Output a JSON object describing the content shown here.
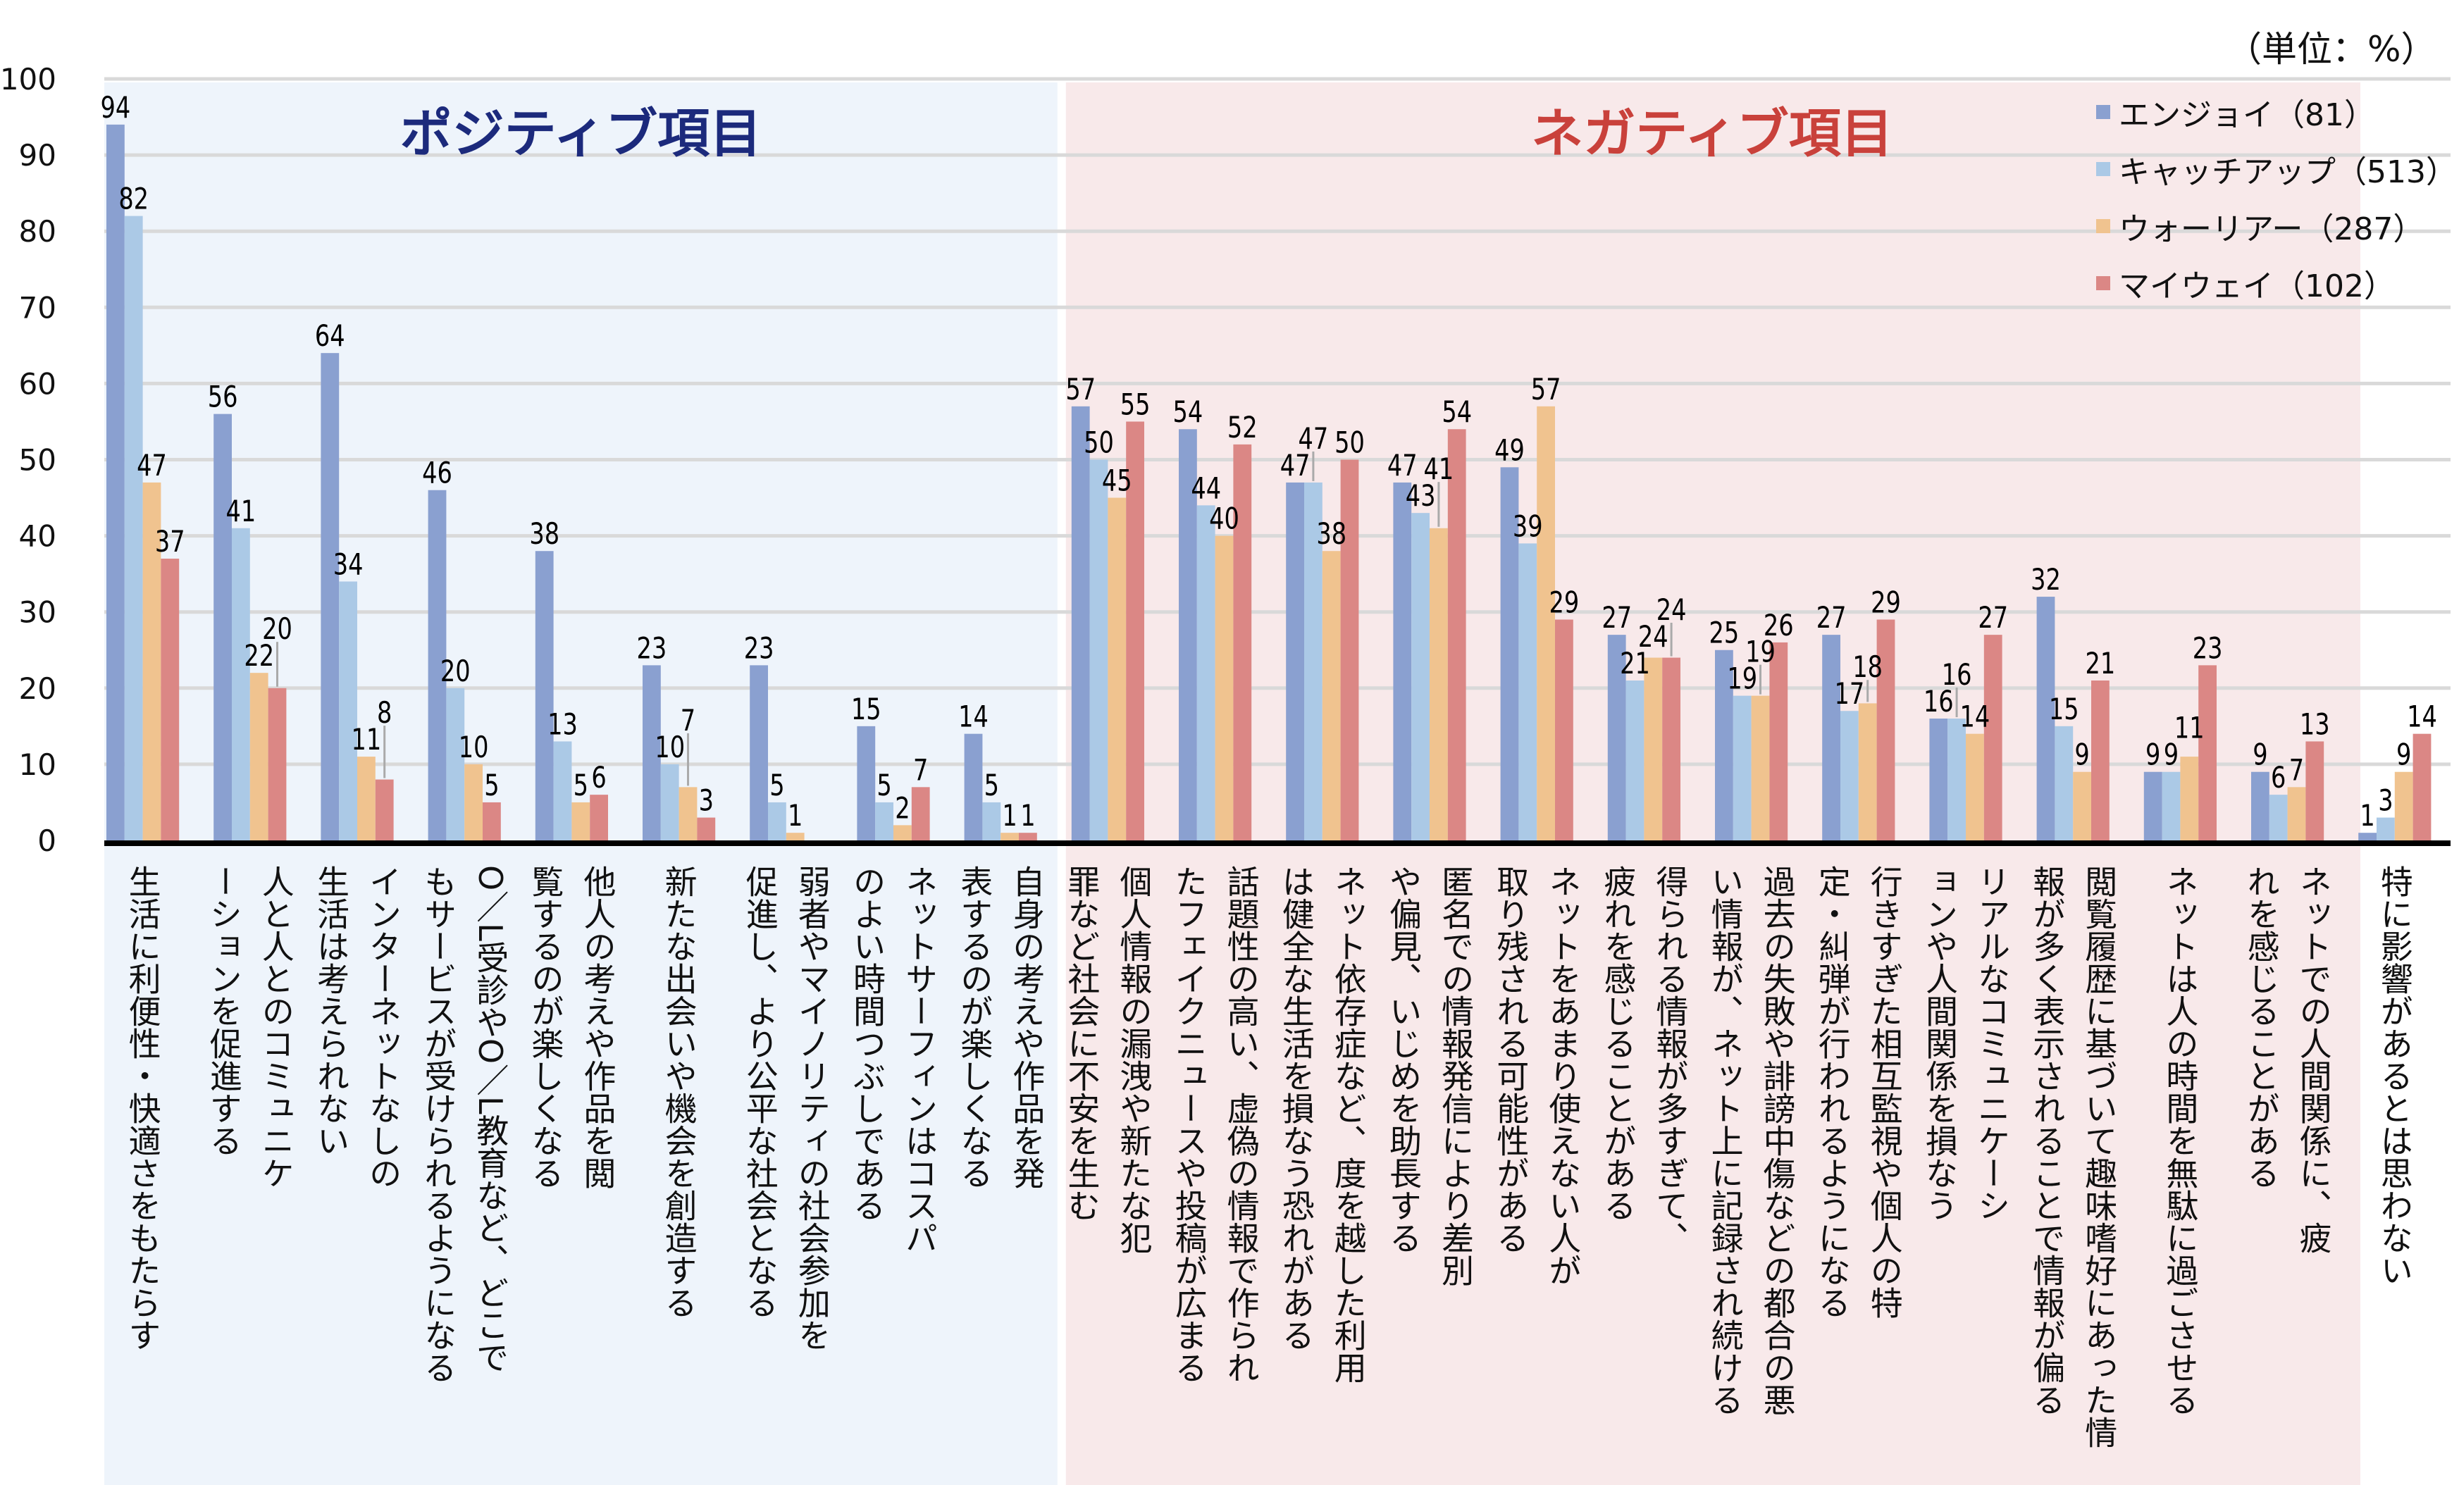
{
  "chart_data": {
    "type": "bar",
    "unit_label": "（単位：%）",
    "group_titles": [
      {
        "label": "ポジティブ項目",
        "color": "#1c2a7c",
        "background": "#eef4fb"
      },
      {
        "label": "ネガティブ項目",
        "color": "#c9413b",
        "background": "#f8e9ea"
      }
    ],
    "ylim": [
      0,
      100
    ],
    "yticks": [
      0,
      10,
      20,
      30,
      40,
      50,
      60,
      70,
      80,
      90,
      100
    ],
    "grid": true,
    "legend_position": "top-right",
    "categories": [
      [
        "生活に利便性・快適さをもたらす"
      ],
      [
        "人と人とのコミュニケ",
        "ーションを促進する"
      ],
      [
        "インターネットなしの",
        "生活は考えられない"
      ],
      [
        "O／L受診やO／L教育など、どこで",
        "もサービスが受けられるようになる"
      ],
      [
        "他人の考えや作品を閲",
        "覧するのが楽しくなる"
      ],
      [
        "新たな出会いや機会を創造する"
      ],
      [
        "弱者やマイノリティの社会参加を",
        "促進し、より公平な社会となる"
      ],
      [
        "ネットサーフィンはコスパ",
        "のよい時間つぶしである"
      ],
      [
        "自身の考えや作品を発",
        "表するのが楽しくなる"
      ],
      [
        "個人情報の漏洩や新たな犯",
        "罪など社会に不安を生む"
      ],
      [
        "話題性の高い、虚偽の情報で作られ",
        "たフェイクニュースや投稿が広まる"
      ],
      [
        "ネット依存症など、度を越した利用",
        "は健全な生活を損なう恐れがある"
      ],
      [
        "匿名での情報発信により差別",
        "や偏見、いじめを助長する"
      ],
      [
        "ネットをあまり使えない人が",
        "取り残される可能性がある"
      ],
      [
        "得られる情報が多すぎて、",
        "疲れを感じることがある"
      ],
      [
        "過去の失敗や誹謗中傷などの都合の悪",
        "い情報が、ネット上に記録され続ける"
      ],
      [
        "行きすぎた相互監視や個人の特",
        "定・糾弾が行われるようになる"
      ],
      [
        "リアルなコミュニケーシ",
        "ョンや人間関係を損なう"
      ],
      [
        "閲覧履歴に基づいて趣味嗜好にあった情",
        "報が多く表示されることで情報が偏る"
      ],
      [
        "ネットは人の時間を無駄に過ごさせる"
      ],
      [
        "ネットでの人間関係に、疲",
        "れを感じることがある"
      ],
      [
        "特に影響があるとは思わない"
      ]
    ],
    "positive_count": 9,
    "series": [
      {
        "name": "エンジョイ（81）",
        "color": "#8aa0d0",
        "values": [
          94,
          56,
          64,
          46,
          38,
          23,
          23,
          15,
          14,
          57,
          54,
          47,
          47,
          49,
          27,
          25,
          27,
          16,
          32,
          9,
          9,
          1
        ]
      },
      {
        "name": "キャッチアップ（513）",
        "color": "#abc9e6",
        "values": [
          82,
          41,
          34,
          20,
          13,
          10,
          5,
          5,
          5,
          50,
          44,
          47,
          43,
          39,
          21,
          19,
          17,
          16,
          15,
          9,
          6,
          3
        ]
      },
      {
        "name": "ウォーリアー（287）",
        "color": "#f0c38f",
        "values": [
          47,
          22,
          11,
          10,
          5,
          7,
          1,
          2,
          1,
          45,
          40,
          38,
          41,
          57,
          24,
          19,
          18,
          14,
          9,
          11,
          7,
          9
        ]
      },
      {
        "name": "マイウェイ（102）",
        "color": "#db8785",
        "values": [
          37,
          20,
          8,
          5,
          6,
          3,
          null,
          7,
          1,
          55,
          52,
          50,
          54,
          29,
          24,
          26,
          29,
          27,
          21,
          23,
          13,
          14
        ]
      }
    ]
  }
}
